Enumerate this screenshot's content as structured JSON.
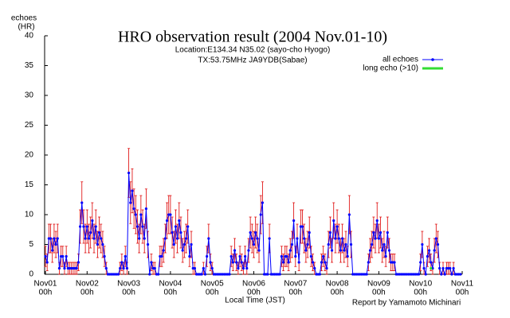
{
  "chart_data": {
    "type": "line",
    "title": "HRO observation result (2004 Nov.01-10)",
    "subtitle": [
      "Location:E134.34 N35.02 (sayo-cho Hyogo)",
      "TX:53.75MHz JA9YDB(Sabae)"
    ],
    "y_label": [
      "echoes",
      "(HR)"
    ],
    "x_label": "Local Time (JST)",
    "credit": "Report by Yamamoto Michinari",
    "legend_position": "upper right",
    "error_color": "#dd0000",
    "xlim": [
      0,
      240
    ],
    "xticks": [
      {
        "value": 0,
        "label": "Nov01"
      },
      {
        "value": 24,
        "label": "Nov02"
      },
      {
        "value": 48,
        "label": "Nov03"
      },
      {
        "value": 72,
        "label": "Nov04"
      },
      {
        "value": 96,
        "label": "Nov05"
      },
      {
        "value": 120,
        "label": "Nov06"
      },
      {
        "value": 144,
        "label": "Nov07"
      },
      {
        "value": 168,
        "label": "Nov08"
      },
      {
        "value": 192,
        "label": "Nov09"
      },
      {
        "value": 216,
        "label": "Nov10"
      },
      {
        "value": 240,
        "label": "Nov11"
      }
    ],
    "xtick_hours": [
      "00h",
      "00h",
      "00h",
      "00h",
      "00h",
      "00h",
      "00h",
      "00h",
      "00h",
      "00h",
      "00h"
    ],
    "ylim": [
      0,
      40
    ],
    "yticks": [
      0,
      5,
      10,
      15,
      20,
      25,
      30,
      35,
      40
    ],
    "series": [
      {
        "name": "all echoes",
        "color": "#0000ff",
        "x": [
          0,
          1,
          2,
          3,
          4,
          5,
          6,
          7,
          8,
          9,
          10,
          11,
          12,
          13,
          14,
          15,
          16,
          17,
          18,
          19,
          20,
          21,
          22,
          23,
          24,
          25,
          26,
          27,
          28,
          29,
          30,
          31,
          32,
          33,
          34,
          35,
          36,
          37,
          38,
          39,
          40,
          41,
          42,
          43,
          44,
          45,
          46,
          47,
          48,
          49,
          50,
          51,
          52,
          53,
          54,
          55,
          56,
          57,
          58,
          59,
          60,
          61,
          62,
          63,
          64,
          65,
          66,
          67,
          68,
          69,
          70,
          71,
          72,
          73,
          74,
          75,
          76,
          77,
          78,
          79,
          80,
          81,
          82,
          83,
          84,
          85,
          86,
          87,
          88,
          89,
          90,
          91,
          92,
          93,
          94,
          95,
          96,
          97,
          98,
          99,
          100,
          101,
          102,
          103,
          104,
          105,
          106,
          107,
          108,
          109,
          110,
          111,
          112,
          113,
          114,
          115,
          116,
          117,
          118,
          119,
          120,
          121,
          122,
          123,
          124,
          125,
          126,
          127,
          128,
          129,
          130,
          131,
          132,
          133,
          134,
          135,
          136,
          137,
          138,
          139,
          140,
          141,
          142,
          143,
          144,
          145,
          146,
          147,
          148,
          149,
          150,
          151,
          152,
          153,
          154,
          155,
          156,
          157,
          158,
          159,
          160,
          161,
          162,
          163,
          164,
          165,
          166,
          167,
          168,
          169,
          170,
          171,
          172,
          173,
          174,
          175,
          176,
          177,
          178,
          179,
          180,
          181,
          182,
          183,
          184,
          185,
          186,
          187,
          188,
          189,
          190,
          191,
          192,
          193,
          194,
          195,
          196,
          197,
          198,
          199,
          200,
          201,
          202,
          203,
          204,
          205,
          206,
          207,
          208,
          209,
          210,
          211,
          212,
          213,
          214,
          215,
          216,
          217,
          218,
          219,
          220,
          221,
          222,
          223,
          224,
          225,
          226,
          227,
          228,
          229,
          230,
          231,
          232,
          233,
          234,
          235,
          236,
          237,
          238,
          239
        ],
        "values": [
          3,
          2,
          6,
          6,
          4,
          6,
          5,
          6,
          1,
          3,
          3,
          1,
          3,
          1,
          1,
          1,
          1,
          1,
          1,
          2,
          8,
          12,
          8,
          6,
          8,
          6,
          7,
          9,
          6,
          8,
          5,
          7,
          6,
          5,
          3,
          1,
          0,
          0,
          0,
          0,
          0,
          0,
          0,
          1,
          2,
          1,
          3,
          1,
          17,
          12,
          14,
          11,
          10,
          8,
          6,
          10,
          8,
          6,
          11,
          5,
          0,
          2,
          1,
          1,
          0,
          0,
          3,
          3,
          4,
          6,
          9,
          10,
          10,
          7,
          5,
          8,
          6,
          9,
          7,
          4,
          5,
          6,
          8,
          3,
          5,
          1,
          1,
          0,
          0,
          0,
          0,
          1,
          0,
          3,
          6,
          2,
          1,
          0,
          0,
          0,
          0,
          0,
          0,
          0,
          0,
          0,
          0,
          3,
          2,
          4,
          2,
          1,
          3,
          2,
          1,
          3,
          1,
          4,
          7,
          6,
          5,
          7,
          6,
          4,
          10,
          12,
          0,
          0,
          0,
          6,
          0,
          0,
          0,
          0,
          0,
          0,
          3,
          2,
          3,
          3,
          2,
          4,
          5,
          9,
          3,
          6,
          2,
          8,
          8,
          6,
          4,
          5,
          7,
          3,
          2,
          1,
          0,
          0,
          0,
          2,
          3,
          2,
          1,
          5,
          7,
          4,
          9,
          6,
          8,
          6,
          4,
          6,
          4,
          5,
          3,
          10,
          5,
          0,
          0,
          0,
          0,
          0,
          0,
          0,
          0,
          0,
          2,
          4,
          5,
          7,
          6,
          9,
          6,
          7,
          4,
          5,
          3,
          7,
          4,
          2,
          2,
          2,
          0,
          0,
          0,
          0,
          0,
          0,
          0,
          0,
          0,
          0,
          0,
          0,
          0,
          0,
          2,
          5,
          1,
          0,
          3,
          4,
          2,
          1,
          4,
          6,
          5,
          1,
          0,
          1,
          0,
          1,
          1,
          1,
          0,
          1,
          0,
          0,
          0,
          0
        ],
        "errors": [
          1.7,
          1.4,
          2.4,
          2.4,
          2,
          2.4,
          2.2,
          2.4,
          1,
          1.7,
          1.7,
          1,
          1.7,
          1,
          1,
          1,
          1,
          1,
          1,
          1.4,
          2.8,
          3.5,
          2.8,
          2.4,
          2.8,
          2.4,
          2.6,
          3,
          2.4,
          2.8,
          2.2,
          2.6,
          2.4,
          2.2,
          1.7,
          1,
          0,
          0,
          0,
          0,
          0,
          0,
          0,
          1,
          1.4,
          1,
          1.7,
          1,
          4.1,
          3.5,
          3.7,
          3.3,
          3.2,
          2.8,
          2.4,
          3.2,
          2.8,
          2.4,
          3.3,
          2.2,
          0,
          1.4,
          1,
          1,
          0,
          0,
          1.7,
          1.7,
          2,
          2.4,
          3,
          3.2,
          3.2,
          2.6,
          2.2,
          2.8,
          2.4,
          3,
          2.6,
          2,
          2.2,
          2.4,
          2.8,
          1.7,
          2.2,
          1,
          1,
          0,
          0,
          0,
          0,
          1,
          0,
          1.7,
          2.4,
          1.4,
          1,
          0,
          0,
          0,
          0,
          0,
          0,
          0,
          0,
          0,
          0,
          1.7,
          1.4,
          2,
          1.4,
          1,
          1.7,
          1.4,
          1,
          1.7,
          1,
          2,
          2.6,
          2.4,
          2.2,
          2.6,
          2.4,
          2,
          3.2,
          3.5,
          0,
          0,
          0,
          2.4,
          0,
          0,
          0,
          0,
          0,
          0,
          1.7,
          1.4,
          1.7,
          1.7,
          1.4,
          2,
          2.2,
          3,
          1.7,
          2.4,
          1.4,
          2.8,
          2.8,
          2.4,
          2,
          2.2,
          2.6,
          1.7,
          1.4,
          1,
          0,
          0,
          0,
          1.4,
          1.7,
          1.4,
          1,
          2.2,
          2.6,
          2,
          3,
          2.4,
          2.8,
          2.4,
          2,
          2.4,
          2,
          2.2,
          1.7,
          3.2,
          2.2,
          0,
          0,
          0,
          0,
          0,
          0,
          0,
          0,
          0,
          1.4,
          2,
          2.2,
          2.6,
          2.4,
          3,
          2.4,
          2.6,
          2,
          2.2,
          1.7,
          2.6,
          2,
          1.4,
          1.4,
          1.4,
          0,
          0,
          0,
          0,
          0,
          0,
          0,
          0,
          0,
          0,
          0,
          0,
          0,
          0,
          1.4,
          2.2,
          1,
          0,
          1.7,
          2,
          1.4,
          1,
          2,
          2.4,
          2.2,
          1,
          0,
          1,
          0,
          1,
          1,
          1,
          0,
          1,
          0,
          0,
          0,
          0
        ]
      },
      {
        "name": "long echo (>10)",
        "color": "#33dd33",
        "x": [
          222
        ],
        "values": [
          1
        ]
      }
    ]
  }
}
